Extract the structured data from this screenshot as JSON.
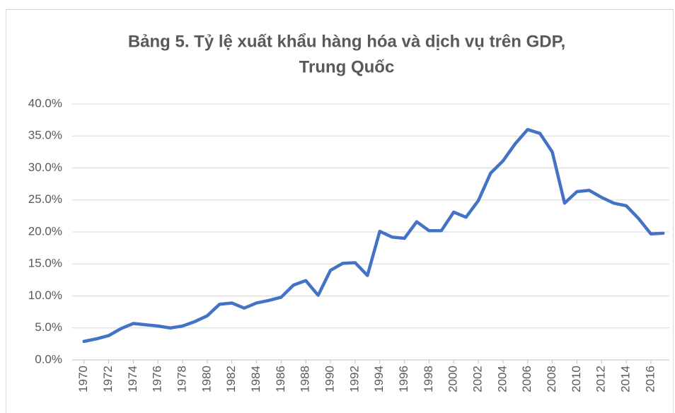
{
  "chart_data": {
    "type": "line",
    "title": [
      "Bảng 5. Tỷ lệ xuất khẩu hàng hóa và dịch vụ trên GDP,",
      "Trung Quốc"
    ],
    "x": [
      1970,
      1971,
      1972,
      1973,
      1974,
      1975,
      1976,
      1977,
      1978,
      1979,
      1980,
      1981,
      1982,
      1983,
      1984,
      1985,
      1986,
      1987,
      1988,
      1989,
      1990,
      1991,
      1992,
      1993,
      1994,
      1995,
      1996,
      1997,
      1998,
      1999,
      2000,
      2001,
      2002,
      2003,
      2004,
      2005,
      2006,
      2007,
      2008,
      2009,
      2010,
      2011,
      2012,
      2013,
      2014,
      2015,
      2016,
      2017
    ],
    "series": [
      {
        "color": "#4472c4",
        "values": [
          2.9,
          3.3,
          3.8,
          4.9,
          5.7,
          5.5,
          5.3,
          5.0,
          5.3,
          6.0,
          6.9,
          8.7,
          8.9,
          8.1,
          8.9,
          9.3,
          9.8,
          11.7,
          12.4,
          10.1,
          14.0,
          15.1,
          15.2,
          13.2,
          20.1,
          19.2,
          19.0,
          21.6,
          20.2,
          20.2,
          23.1,
          22.3,
          24.9,
          29.2,
          31.1,
          33.8,
          36.0,
          35.4,
          32.5,
          24.5,
          26.3,
          26.5,
          25.4,
          24.5,
          24.1,
          22.1,
          19.7,
          19.8
        ]
      }
    ],
    "xlim": [
      1969.5,
      2017.5
    ],
    "xticks": [
      1970,
      1972,
      1974,
      1976,
      1978,
      1980,
      1982,
      1984,
      1986,
      1988,
      1990,
      1992,
      1994,
      1996,
      1998,
      2000,
      2002,
      2004,
      2006,
      2008,
      2010,
      2012,
      2014,
      2016
    ],
    "ylim": [
      0,
      40
    ],
    "yticks": [
      {
        "value": 0,
        "label": "0.0%"
      },
      {
        "value": 5,
        "label": "5.0%"
      },
      {
        "value": 10,
        "label": "10.0%"
      },
      {
        "value": 15,
        "label": "15.0%"
      },
      {
        "value": 20,
        "label": "20.0%"
      },
      {
        "value": 25,
        "label": "25.0%"
      },
      {
        "value": 30,
        "label": "30.0%"
      },
      {
        "value": 35,
        "label": "35.0%"
      },
      {
        "value": 40,
        "label": "40.0%"
      }
    ],
    "grid": true
  }
}
